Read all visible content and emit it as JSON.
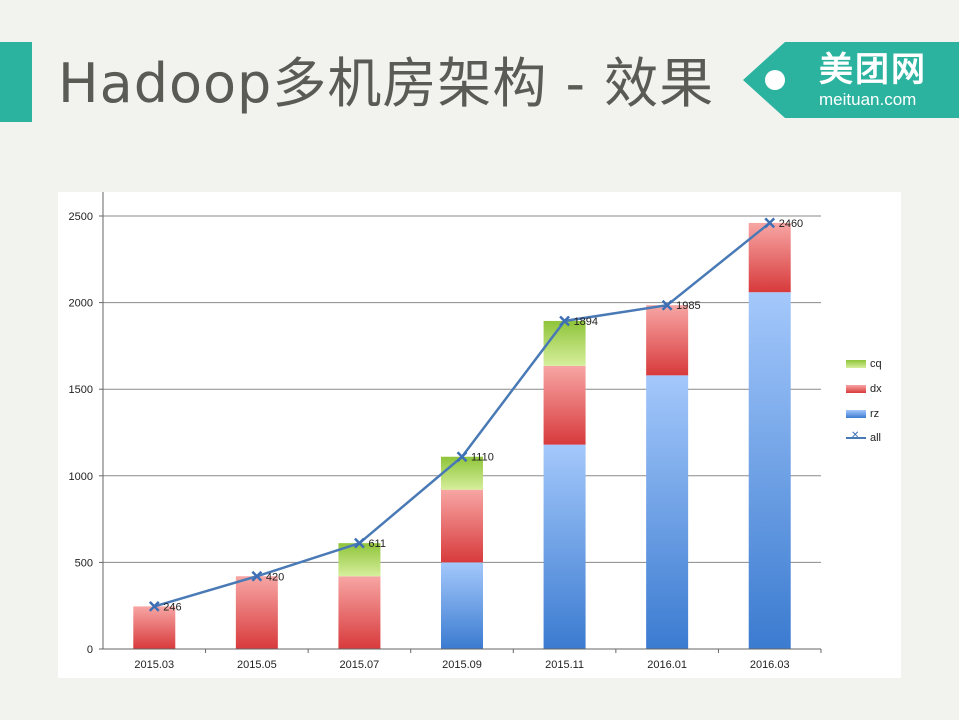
{
  "slide": {
    "title": "Hadoop多机房架构 - 效果",
    "logo_cn": "美团网",
    "logo_en": "meituan.com"
  },
  "colors": {
    "accent": "#2bb3a0",
    "title_text": "#5b5b55",
    "background": "#f2f2ee",
    "rz": "#4a86d6",
    "dx": "#e0484a",
    "cq": "#9ed048",
    "all": "#4a7ab5"
  },
  "chart_data": {
    "type": "bar",
    "stacked": true,
    "categories": [
      "2015.03",
      "2015.05",
      "2015.07",
      "2015.09",
      "2015.11",
      "2016.01",
      "2016.03"
    ],
    "series": [
      {
        "name": "rz",
        "type": "bar",
        "values": [
          0,
          0,
          0,
          500,
          1180,
          1580,
          2060
        ]
      },
      {
        "name": "dx",
        "type": "bar",
        "values": [
          246,
          420,
          420,
          420,
          455,
          405,
          400
        ]
      },
      {
        "name": "cq",
        "type": "bar",
        "values": [
          0,
          0,
          191,
          190,
          259,
          0,
          0
        ]
      },
      {
        "name": "all",
        "type": "line",
        "values": [
          246,
          420,
          611,
          1110,
          1894,
          1985,
          2460
        ]
      }
    ],
    "data_labels": [
      "246",
      "420",
      "611",
      "1110",
      "1894",
      "1985",
      "2460"
    ],
    "y_ticks": [
      "0",
      "500",
      "1000",
      "1500",
      "2000",
      "2500"
    ],
    "ylim": [
      0,
      2500
    ],
    "grid": true,
    "legend_position": "right",
    "legend": [
      "cq",
      "dx",
      "rz",
      "all"
    ]
  }
}
